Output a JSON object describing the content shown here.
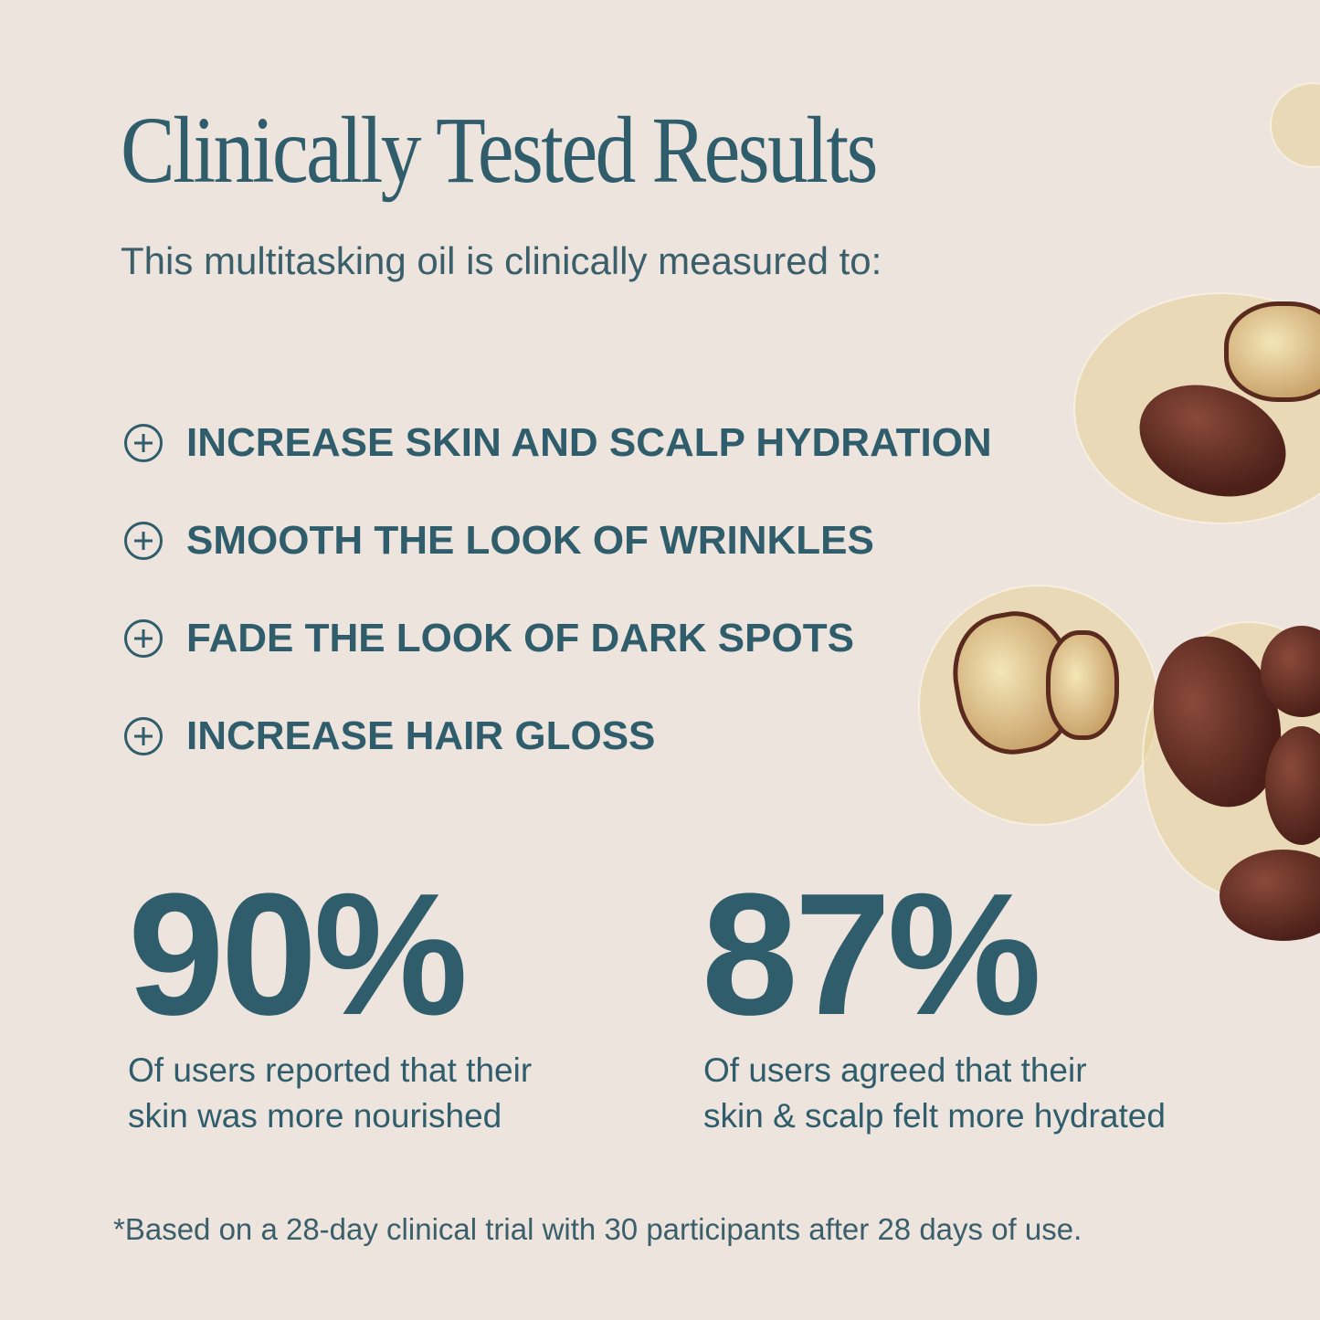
{
  "title": "Clinically Tested Results",
  "subtitle": "This multitasking oil is clinically measured to:",
  "benefits": [
    {
      "icon": "plus-circle-icon",
      "label": "INCREASE SKIN AND SCALP HYDRATION"
    },
    {
      "icon": "plus-circle-icon",
      "label": "SMOOTH THE LOOK OF WRINKLES"
    },
    {
      "icon": "plus-circle-icon",
      "label": "FADE THE LOOK OF DARK SPOTS"
    },
    {
      "icon": "plus-circle-icon",
      "label": "INCREASE HAIR GLOSS"
    }
  ],
  "stats": [
    {
      "value": "90%",
      "line1": "Of users reported that their",
      "line2": "skin was more nourished"
    },
    {
      "value": "87%",
      "line1": "Of users agreed that their",
      "line2": "skin & scalp felt more hydrated"
    }
  ],
  "footnote": "*Based on a 28-day clinical trial with 30 participants after 28 days of use.",
  "colors": {
    "background": "#ede4dd",
    "text": "#2f5d6c"
  }
}
